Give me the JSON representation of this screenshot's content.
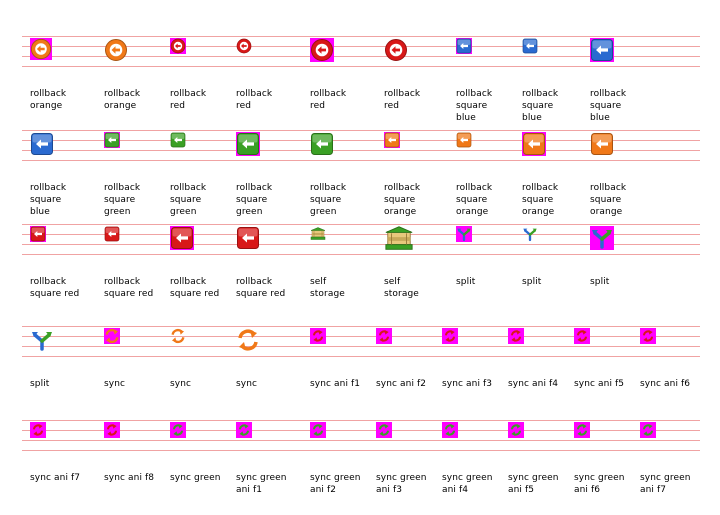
{
  "palette": {
    "orange": "#f07818",
    "red": "#d81818",
    "blue": "#2a6ad0",
    "green": "#3aa024",
    "highlight": "#ff00ff",
    "ruled_line": "#f0a3a3"
  },
  "rows": [
    {
      "items": [
        {
          "label": "rollback\norange",
          "icon": "rollback-orange-icon",
          "kind": "circle",
          "color": "orange",
          "size": "small",
          "selected": true
        },
        {
          "label": "rollback\norange",
          "icon": "rollback-orange-icon",
          "kind": "circle",
          "color": "orange",
          "size": "medium",
          "selected": false
        },
        {
          "label": "rollback\nred",
          "icon": "rollback-red-icon",
          "kind": "circle",
          "color": "red",
          "size": "tiny",
          "selected": true
        },
        {
          "label": "rollback\nred",
          "icon": "rollback-red-icon",
          "kind": "circle",
          "color": "red",
          "size": "tiny",
          "selected": false
        },
        {
          "label": "rollback\nred",
          "icon": "rollback-red-icon",
          "kind": "circle",
          "color": "red",
          "size": "medium",
          "selected": true
        },
        {
          "label": "rollback\nred",
          "icon": "rollback-red-icon",
          "kind": "circle",
          "color": "red",
          "size": "medium",
          "selected": false
        },
        {
          "label": "rollback\nsquare\nblue",
          "icon": "rollback-square-blue-icon",
          "kind": "square",
          "color": "blue",
          "size": "tiny",
          "selected": true
        },
        {
          "label": "rollback\nsquare\nblue",
          "icon": "rollback-square-blue-icon",
          "kind": "square",
          "color": "blue",
          "size": "tiny",
          "selected": false
        },
        {
          "label": "rollback\nsquare\nblue",
          "icon": "rollback-square-blue-icon",
          "kind": "square",
          "color": "blue",
          "size": "medium",
          "selected": true
        }
      ]
    },
    {
      "items": [
        {
          "label": "rollback\nsquare\nblue",
          "icon": "rollback-square-blue-icon",
          "kind": "square",
          "color": "blue",
          "size": "medium",
          "selected": false
        },
        {
          "label": "rollback\nsquare\ngreen",
          "icon": "rollback-square-green-icon",
          "kind": "square",
          "color": "green",
          "size": "tiny",
          "selected": true
        },
        {
          "label": "rollback\nsquare\ngreen",
          "icon": "rollback-square-green-icon",
          "kind": "square",
          "color": "green",
          "size": "tiny",
          "selected": false
        },
        {
          "label": "rollback\nsquare\ngreen",
          "icon": "rollback-square-green-icon",
          "kind": "square",
          "color": "green",
          "size": "medium",
          "selected": true
        },
        {
          "label": "rollback\nsquare\ngreen",
          "icon": "rollback-square-green-icon",
          "kind": "square",
          "color": "green",
          "size": "medium",
          "selected": false
        },
        {
          "label": "rollback\nsquare\norange",
          "icon": "rollback-square-orange-icon",
          "kind": "square",
          "color": "orange",
          "size": "tiny",
          "selected": true
        },
        {
          "label": "rollback\nsquare\norange",
          "icon": "rollback-square-orange-icon",
          "kind": "square",
          "color": "orange",
          "size": "tiny",
          "selected": false
        },
        {
          "label": "rollback\nsquare\norange",
          "icon": "rollback-square-orange-icon",
          "kind": "square",
          "color": "orange",
          "size": "medium",
          "selected": true
        },
        {
          "label": "rollback\nsquare\norange",
          "icon": "rollback-square-orange-icon",
          "kind": "square",
          "color": "orange",
          "size": "medium",
          "selected": false
        }
      ]
    },
    {
      "items": [
        {
          "label": "rollback\nsquare red",
          "icon": "rollback-square-red-icon",
          "kind": "square",
          "color": "red",
          "size": "tiny",
          "selected": true
        },
        {
          "label": "rollback\nsquare red",
          "icon": "rollback-square-red-icon",
          "kind": "square",
          "color": "red",
          "size": "tiny",
          "selected": false
        },
        {
          "label": "rollback\nsquare red",
          "icon": "rollback-square-red-icon",
          "kind": "square",
          "color": "red",
          "size": "medium",
          "selected": true
        },
        {
          "label": "rollback\nsquare red",
          "icon": "rollback-square-red-icon",
          "kind": "square",
          "color": "red",
          "size": "medium",
          "selected": false
        },
        {
          "label": "self\nstorage",
          "icon": "self-storage-icon",
          "kind": "storage",
          "color": "green",
          "size": "tiny",
          "selected": false
        },
        {
          "label": "self\nstorage",
          "icon": "self-storage-icon",
          "kind": "storage",
          "color": "green",
          "size": "large",
          "selected": false
        },
        {
          "label": "split",
          "icon": "split-icon",
          "kind": "split",
          "color": "blue",
          "size": "tiny",
          "selected": true
        },
        {
          "label": "split",
          "icon": "split-icon",
          "kind": "split",
          "color": "blue",
          "size": "tiny",
          "selected": false
        },
        {
          "label": "split",
          "icon": "split-icon",
          "kind": "split",
          "color": "blue",
          "size": "medium",
          "selected": true
        }
      ]
    },
    {
      "items": [
        {
          "label": "split",
          "icon": "split-icon",
          "kind": "split",
          "color": "blue",
          "size": "medium",
          "selected": false
        },
        {
          "label": "sync",
          "icon": "sync-icon",
          "kind": "sync",
          "color": "orange",
          "size": "tiny",
          "selected": true
        },
        {
          "label": "sync",
          "icon": "sync-icon",
          "kind": "sync",
          "color": "orange",
          "size": "tiny",
          "selected": false
        },
        {
          "label": "sync",
          "icon": "sync-icon",
          "kind": "sync",
          "color": "orange",
          "size": "medium",
          "selected": false
        },
        {
          "label": "sync ani f1",
          "icon": "sync-ani-icon",
          "kind": "syncani",
          "color": "red",
          "size": "tiny",
          "selected": true
        },
        {
          "label": "sync ani f2",
          "icon": "sync-ani-icon",
          "kind": "syncani",
          "color": "red",
          "size": "tiny",
          "selected": true
        },
        {
          "label": "sync ani f3",
          "icon": "sync-ani-icon",
          "kind": "syncani",
          "color": "red",
          "size": "tiny",
          "selected": true
        },
        {
          "label": "sync ani f4",
          "icon": "sync-ani-icon",
          "kind": "syncani",
          "color": "red",
          "size": "tiny",
          "selected": true
        },
        {
          "label": "sync ani f5",
          "icon": "sync-ani-icon",
          "kind": "syncani",
          "color": "red",
          "size": "tiny",
          "selected": true
        },
        {
          "label": "sync ani f6",
          "icon": "sync-ani-icon",
          "kind": "syncani",
          "color": "red",
          "size": "tiny",
          "selected": true
        }
      ]
    },
    {
      "items": [
        {
          "label": "sync ani f7",
          "icon": "sync-ani-icon",
          "kind": "syncani",
          "color": "red",
          "size": "tiny",
          "selected": true
        },
        {
          "label": "sync ani f8",
          "icon": "sync-ani-icon",
          "kind": "syncani",
          "color": "red",
          "size": "tiny",
          "selected": true
        },
        {
          "label": "sync green",
          "icon": "sync-green-icon",
          "kind": "syncani",
          "color": "green",
          "size": "tiny",
          "selected": true
        },
        {
          "label": "sync green\nani f1",
          "icon": "sync-green-ani-icon",
          "kind": "syncani",
          "color": "green",
          "size": "tiny",
          "selected": true
        },
        {
          "label": "sync green\nani f2",
          "icon": "sync-green-ani-icon",
          "kind": "syncani",
          "color": "green",
          "size": "tiny",
          "selected": true
        },
        {
          "label": "sync green\nani f3",
          "icon": "sync-green-ani-icon",
          "kind": "syncani",
          "color": "green",
          "size": "tiny",
          "selected": true
        },
        {
          "label": "sync green\nani f4",
          "icon": "sync-green-ani-icon",
          "kind": "syncani",
          "color": "green",
          "size": "tiny",
          "selected": true
        },
        {
          "label": "sync green\nani f5",
          "icon": "sync-green-ani-icon",
          "kind": "syncani",
          "color": "green",
          "size": "tiny",
          "selected": true
        },
        {
          "label": "sync green\nani f6",
          "icon": "sync-green-ani-icon",
          "kind": "syncani",
          "color": "green",
          "size": "tiny",
          "selected": true
        },
        {
          "label": "sync green\nani f7",
          "icon": "sync-green-ani-icon",
          "kind": "syncani",
          "color": "green",
          "size": "tiny",
          "selected": true
        }
      ]
    }
  ]
}
